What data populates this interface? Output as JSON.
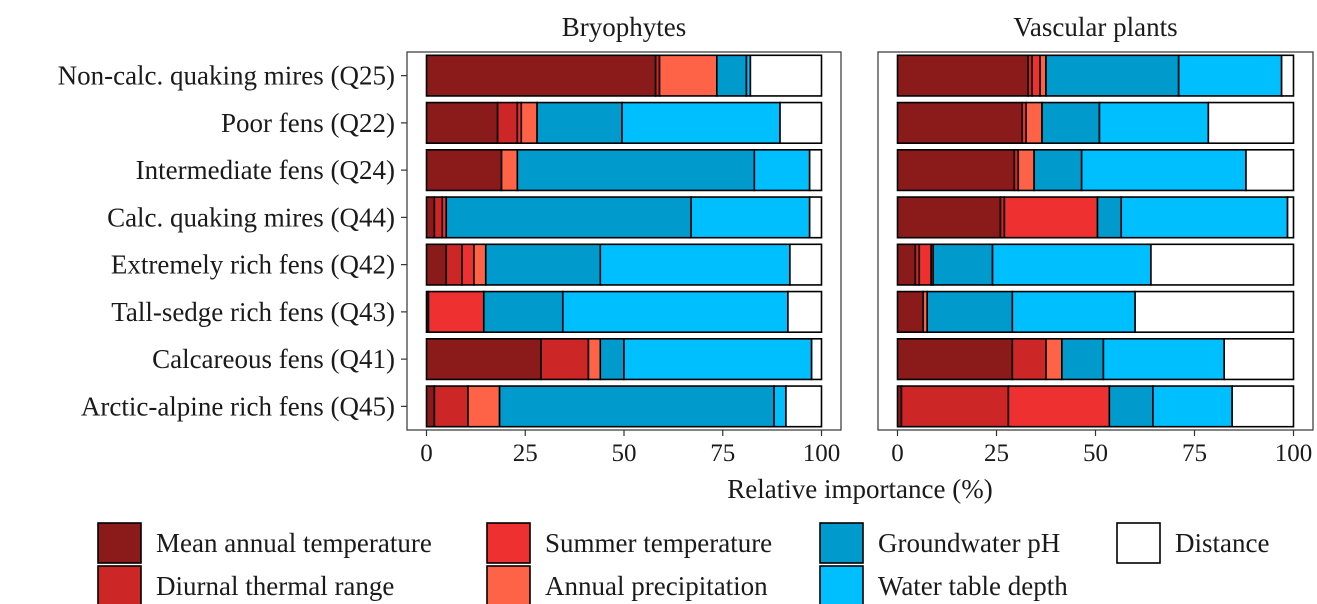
{
  "chart_data": {
    "type": "bar",
    "stacked": true,
    "orientation": "horizontal",
    "xlabel": "Relative importance (%)",
    "xlim": [
      0,
      100
    ],
    "xticks": [
      0,
      25,
      50,
      75,
      100
    ],
    "categories": [
      "Non-calc. quaking mires (Q25)",
      "Poor fens (Q22)",
      "Intermediate fens (Q24)",
      "Calc. quaking mires (Q44)",
      "Extremely rich fens (Q42)",
      "Tall-sedge rich fens (Q43)",
      "Calcareous fens (Q41)",
      "Arctic-alpine rich fens (Q45)"
    ],
    "series_legend": [
      {
        "key": "mat",
        "name": "Mean annual temperature",
        "color": "#8B1A1A"
      },
      {
        "key": "dtr",
        "name": "Diurnal thermal range",
        "color": "#CD2626"
      },
      {
        "key": "st",
        "name": "Summer temperature",
        "color": "#EE3030"
      },
      {
        "key": "ap",
        "name": "Annual precipitation",
        "color": "#FF6347"
      },
      {
        "key": "gph",
        "name": "Groundwater pH",
        "color": "#009ACD"
      },
      {
        "key": "wtd",
        "name": "Water table depth",
        "color": "#00BFFF"
      },
      {
        "key": "dist",
        "name": "Distance",
        "color": "#FFFFFF"
      }
    ],
    "panels": [
      {
        "title": "Bryophytes",
        "series": [
          {
            "name": "Mean annual temperature",
            "values": [
              58,
              18,
              19,
              2,
              5,
              0.5,
              29,
              2
            ]
          },
          {
            "name": "Diurnal thermal range",
            "values": [
              1,
              5,
              0,
              2,
              4,
              0,
              12,
              8.5
            ]
          },
          {
            "name": "Summer temperature",
            "values": [
              0,
              1,
              0,
              1,
              3,
              14,
              0,
              0
            ]
          },
          {
            "name": "Annual precipitation",
            "values": [
              14.5,
              4,
              4,
              0,
              3,
              0,
              3,
              8
            ]
          },
          {
            "name": "Groundwater pH",
            "values": [
              7.5,
              21.5,
              60,
              62,
              29,
              20,
              6,
              69.5
            ]
          },
          {
            "name": "Water table depth",
            "values": [
              1,
              40,
              14,
              30,
              48,
              57,
              47.5,
              3
            ]
          },
          {
            "name": "Distance",
            "values": [
              18,
              10.5,
              3,
              3,
              8,
              8.5,
              2.5,
              9
            ]
          }
        ]
      },
      {
        "title": "Vascular plants",
        "series": [
          {
            "name": "Mean annual temperature",
            "values": [
              33,
              31.5,
              29.5,
              26,
              4.5,
              6.5,
              29,
              1
            ]
          },
          {
            "name": "Diurnal thermal range",
            "values": [
              1,
              0,
              1,
              1,
              1,
              0,
              8.5,
              27
            ]
          },
          {
            "name": "Summer temperature",
            "values": [
              2,
              1,
              0,
              23.5,
              3,
              0,
              0,
              25.5
            ]
          },
          {
            "name": "Annual precipitation",
            "values": [
              1.5,
              4,
              4,
              0,
              0.5,
              1,
              4,
              0
            ]
          },
          {
            "name": "Groundwater pH",
            "values": [
              33.5,
              14.5,
              12,
              6,
              15,
              21.5,
              10.5,
              11
            ]
          },
          {
            "name": "Water table depth",
            "values": [
              26,
              27.5,
              41.5,
              42,
              40,
              31,
              30.5,
              20
            ]
          },
          {
            "name": "Distance",
            "values": [
              3,
              21.5,
              12,
              1.5,
              36,
              40,
              17.5,
              15.5
            ]
          }
        ]
      }
    ]
  }
}
